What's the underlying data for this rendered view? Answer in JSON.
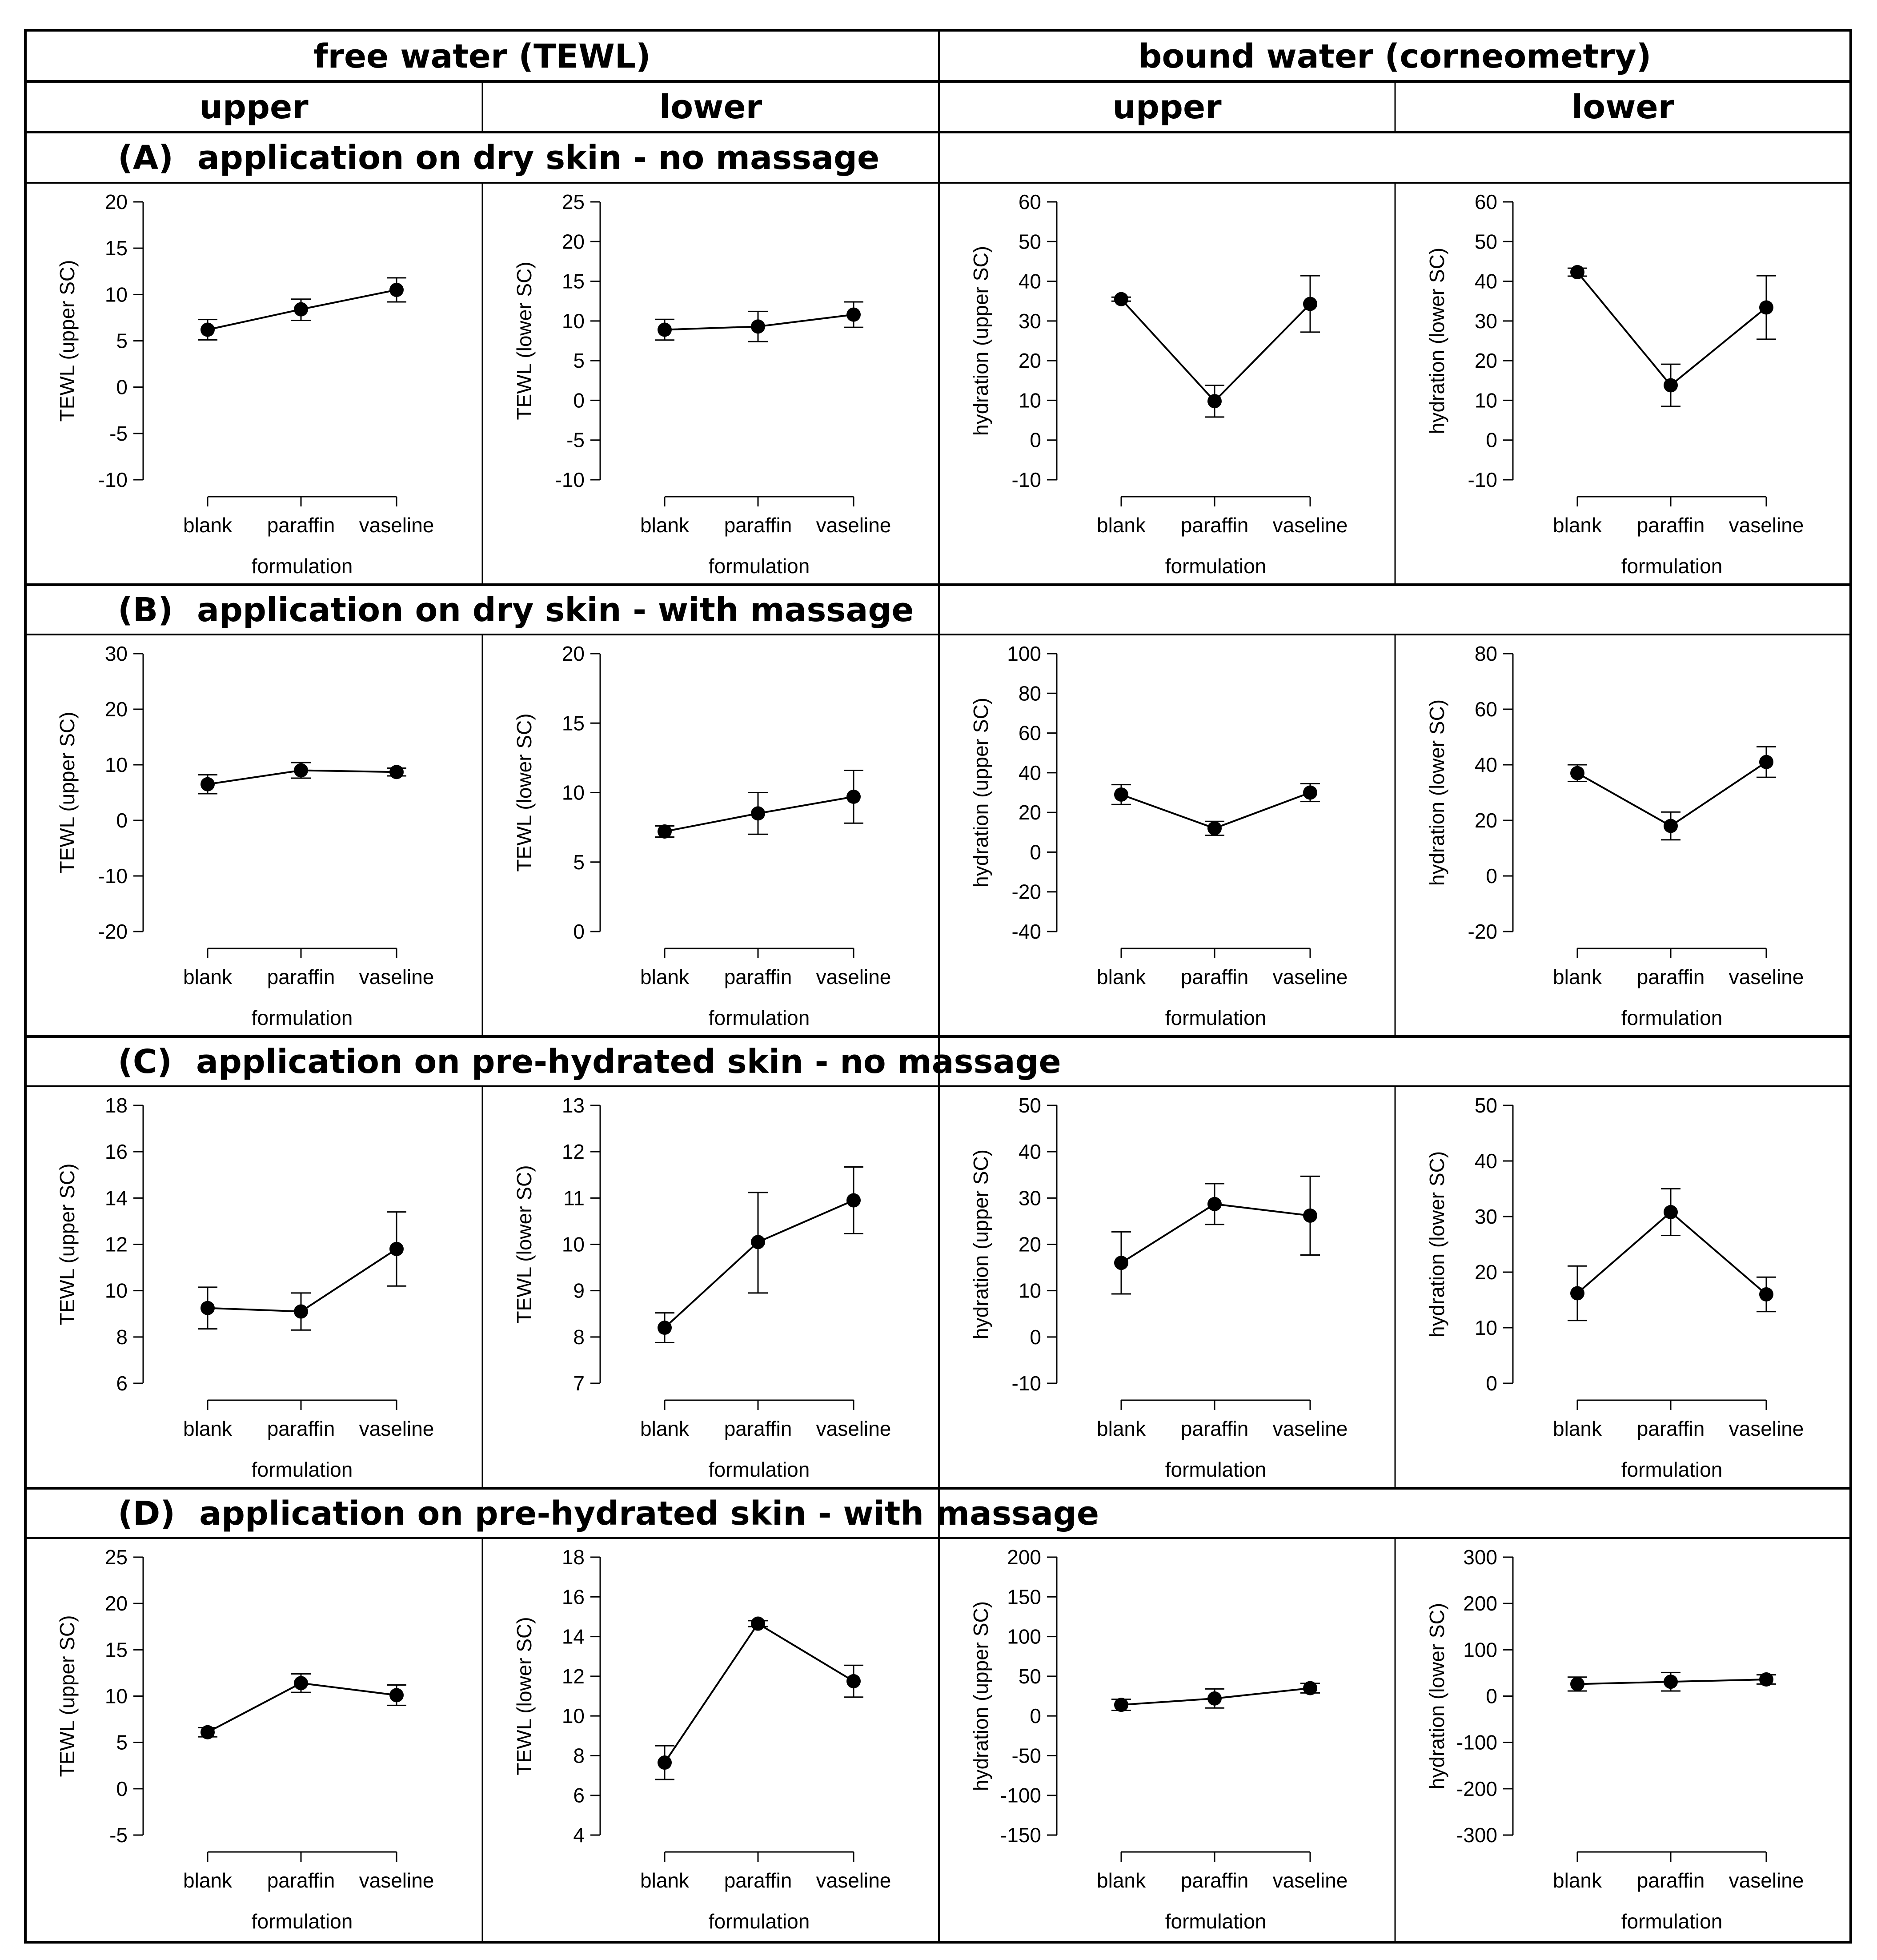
{
  "header": {
    "free_water": "free water (TEWL)",
    "bound_water": "bound water (corneometry)",
    "upper": "upper",
    "lower": "lower"
  },
  "rows": [
    {
      "label": "(A)",
      "title": "application on dry skin - no massage"
    },
    {
      "label": "(B)",
      "title": "application on dry skin - with massage"
    },
    {
      "label": "(C)",
      "title": "application on pre-hydrated skin - no massage"
    },
    {
      "label": "(D)",
      "title": "application on pre-hydrated skin - with massage"
    }
  ],
  "chart_data": [
    {
      "id": "A1",
      "type": "line",
      "categories": [
        "blank",
        "paraffin",
        "vaseline"
      ],
      "ylabel": "TEWL (upper SC)",
      "xlabel": "formulation",
      "yticks": [
        -10,
        -5,
        0,
        5,
        10,
        15,
        20
      ],
      "ylim": [
        -10,
        20
      ],
      "values": [
        6.2,
        8.4,
        10.5
      ],
      "err_low": [
        5.1,
        7.2,
        9.2
      ],
      "err_high": [
        7.3,
        9.5,
        11.8
      ]
    },
    {
      "id": "A2",
      "type": "line",
      "categories": [
        "blank",
        "paraffin",
        "vaseline"
      ],
      "ylabel": "TEWL (lower SC)",
      "xlabel": "formulation",
      "yticks": [
        -10,
        -5,
        0,
        5,
        10,
        15,
        20,
        25
      ],
      "ylim": [
        -10,
        25
      ],
      "values": [
        8.9,
        9.3,
        10.8
      ],
      "err_low": [
        7.6,
        7.4,
        9.2
      ],
      "err_high": [
        10.2,
        11.2,
        12.4
      ]
    },
    {
      "id": "A3",
      "type": "line",
      "categories": [
        "blank",
        "paraffin",
        "vaseline"
      ],
      "ylabel": "hydration (upper SC)",
      "xlabel": "formulation",
      "yticks": [
        -10,
        0,
        10,
        20,
        30,
        40,
        50,
        60
      ],
      "ylim": [
        -10,
        60
      ],
      "values": [
        35.5,
        9.8,
        34.3
      ],
      "err_low": [
        35.0,
        5.8,
        27.2
      ],
      "err_high": [
        36.0,
        13.8,
        41.4
      ]
    },
    {
      "id": "A4",
      "type": "line",
      "categories": [
        "blank",
        "paraffin",
        "vaseline"
      ],
      "ylabel": "hydration (lower SC)",
      "xlabel": "formulation",
      "yticks": [
        -10,
        0,
        10,
        20,
        30,
        40,
        50,
        60
      ],
      "ylim": [
        -10,
        60
      ],
      "values": [
        42.3,
        13.8,
        33.4
      ],
      "err_low": [
        41.3,
        8.5,
        25.4
      ],
      "err_high": [
        43.3,
        19.1,
        41.4
      ]
    },
    {
      "id": "B1",
      "type": "line",
      "categories": [
        "blank",
        "paraffin",
        "vaseline"
      ],
      "ylabel": "TEWL (upper SC)",
      "xlabel": "formulation",
      "yticks": [
        -20,
        -10,
        0,
        10,
        20,
        30
      ],
      "ylim": [
        -20,
        30
      ],
      "values": [
        6.5,
        9.0,
        8.7
      ],
      "err_low": [
        4.8,
        7.6,
        8.0
      ],
      "err_high": [
        8.2,
        10.4,
        9.4
      ]
    },
    {
      "id": "B2",
      "type": "line",
      "categories": [
        "blank",
        "paraffin",
        "vaseline"
      ],
      "ylabel": "TEWL (lower SC)",
      "xlabel": "formulation",
      "yticks": [
        0,
        5,
        10,
        15,
        20
      ],
      "ylim": [
        0,
        20
      ],
      "values": [
        7.2,
        8.5,
        9.7
      ],
      "err_low": [
        6.8,
        7.0,
        7.8
      ],
      "err_high": [
        7.6,
        10.0,
        11.6
      ]
    },
    {
      "id": "B3",
      "type": "line",
      "categories": [
        "blank",
        "paraffin",
        "vaseline"
      ],
      "ylabel": "hydration (upper SC)",
      "xlabel": "formulation",
      "yticks": [
        -40,
        -20,
        0,
        20,
        40,
        60,
        80,
        100
      ],
      "ylim": [
        -40,
        100
      ],
      "values": [
        29.0,
        12.0,
        30.0
      ],
      "err_low": [
        24.0,
        8.5,
        25.5
      ],
      "err_high": [
        34.0,
        15.5,
        34.5
      ]
    },
    {
      "id": "B4",
      "type": "line",
      "categories": [
        "blank",
        "paraffin",
        "vaseline"
      ],
      "ylabel": "hydration (lower SC)",
      "xlabel": "formulation",
      "yticks": [
        -20,
        0,
        20,
        40,
        60,
        80
      ],
      "ylim": [
        -20,
        80
      ],
      "values": [
        37.0,
        18.0,
        41.0
      ],
      "err_low": [
        34.0,
        13.0,
        35.5
      ],
      "err_high": [
        40.0,
        23.0,
        46.5
      ]
    },
    {
      "id": "C1",
      "type": "line",
      "categories": [
        "blank",
        "paraffin",
        "vaseline"
      ],
      "ylabel": "TEWL (upper SC)",
      "xlabel": "formulation",
      "yticks": [
        6,
        8,
        10,
        12,
        14,
        16,
        18
      ],
      "ylim": [
        6,
        18
      ],
      "values": [
        9.25,
        9.1,
        11.8
      ],
      "err_low": [
        8.35,
        8.3,
        10.2
      ],
      "err_high": [
        10.15,
        9.9,
        13.4
      ]
    },
    {
      "id": "C2",
      "type": "line",
      "categories": [
        "blank",
        "paraffin",
        "vaseline"
      ],
      "ylabel": "TEWL (lower SC)",
      "xlabel": "formulation",
      "yticks": [
        7,
        8,
        9,
        10,
        11,
        12,
        13
      ],
      "ylim": [
        7,
        13
      ],
      "values": [
        8.2,
        10.05,
        10.95
      ],
      "err_low": [
        7.88,
        8.95,
        10.23
      ],
      "err_high": [
        8.52,
        11.12,
        11.67
      ]
    },
    {
      "id": "C3",
      "type": "line",
      "categories": [
        "blank",
        "paraffin",
        "vaseline"
      ],
      "ylabel": "hydration (upper SC)",
      "xlabel": "formulation",
      "yticks": [
        -10,
        0,
        10,
        20,
        30,
        40,
        50
      ],
      "ylim": [
        -10,
        50
      ],
      "values": [
        16.0,
        28.7,
        26.2
      ],
      "err_low": [
        9.3,
        24.3,
        17.7
      ],
      "err_high": [
        22.7,
        33.1,
        34.7
      ]
    },
    {
      "id": "C4",
      "type": "line",
      "categories": [
        "blank",
        "paraffin",
        "vaseline"
      ],
      "ylabel": "hydration (lower SC)",
      "xlabel": "formulation",
      "yticks": [
        0,
        10,
        20,
        30,
        40,
        50
      ],
      "ylim": [
        0,
        50
      ],
      "values": [
        16.2,
        30.8,
        16.0
      ],
      "err_low": [
        11.3,
        26.6,
        12.9
      ],
      "err_high": [
        21.1,
        35.0,
        19.1
      ]
    },
    {
      "id": "D1",
      "type": "line",
      "categories": [
        "blank",
        "paraffin",
        "vaseline"
      ],
      "ylabel": "TEWL (upper SC)",
      "xlabel": "formulation",
      "yticks": [
        -5,
        0,
        5,
        10,
        15,
        20,
        25
      ],
      "ylim": [
        -5,
        25
      ],
      "values": [
        6.1,
        11.4,
        10.1
      ],
      "err_low": [
        5.6,
        10.4,
        9.0
      ],
      "err_high": [
        6.6,
        12.4,
        11.2
      ]
    },
    {
      "id": "D2",
      "type": "line",
      "categories": [
        "blank",
        "paraffin",
        "vaseline"
      ],
      "ylabel": "TEWL (lower SC)",
      "xlabel": "formulation",
      "yticks": [
        4,
        6,
        8,
        10,
        12,
        14,
        16,
        18
      ],
      "ylim": [
        4,
        18
      ],
      "values": [
        7.65,
        14.65,
        11.75
      ],
      "err_low": [
        6.8,
        14.5,
        10.95
      ],
      "err_high": [
        8.5,
        14.8,
        12.55
      ]
    },
    {
      "id": "D3",
      "type": "line",
      "categories": [
        "blank",
        "paraffin",
        "vaseline"
      ],
      "ylabel": "hydration (upper SC)",
      "xlabel": "formulation",
      "yticks": [
        -150,
        -100,
        -50,
        0,
        50,
        100,
        150,
        200
      ],
      "ylim": [
        -150,
        200
      ],
      "values": [
        14.0,
        22.0,
        35.0
      ],
      "err_low": [
        7.0,
        10.0,
        29.0
      ],
      "err_high": [
        21.0,
        34.0,
        41.0
      ]
    },
    {
      "id": "D4",
      "type": "line",
      "categories": [
        "blank",
        "paraffin",
        "vaseline"
      ],
      "ylabel": "hydration (lower SC)",
      "xlabel": "formulation",
      "yticks": [
        -300,
        -200,
        -100,
        0,
        100,
        200,
        300
      ],
      "ylim": [
        -300,
        300
      ],
      "values": [
        26.0,
        31.0,
        36.0
      ],
      "err_low": [
        11.0,
        11.0,
        26.0
      ],
      "err_high": [
        41.0,
        51.0,
        46.0
      ]
    }
  ]
}
